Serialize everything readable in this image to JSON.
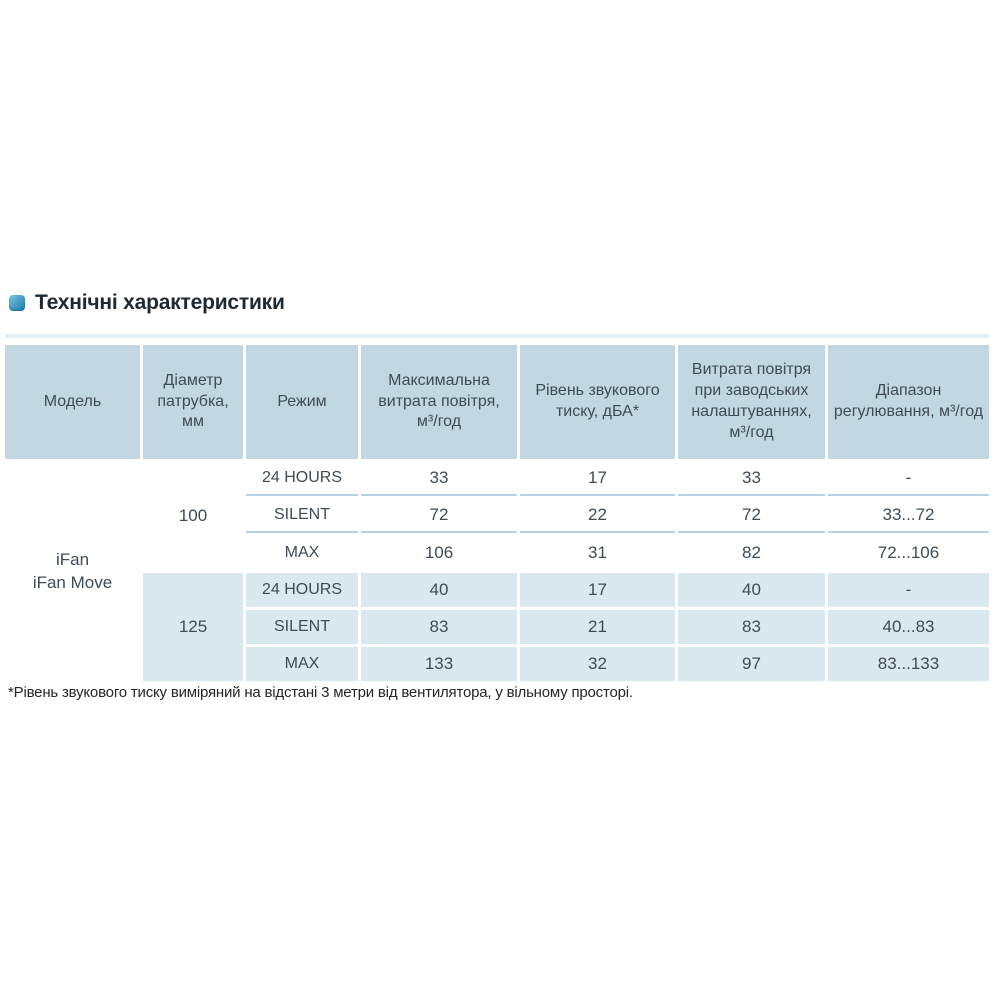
{
  "heading": {
    "text": "Технічні характеристики"
  },
  "colors": {
    "header_bg": "#c2d7e2",
    "row_alt_bg": "#dae8ef",
    "separator_line": "#b5d3e5",
    "top_line": "#e3eef4",
    "heading_text": "#1e2a33",
    "body_text": "#3f4b55",
    "bullet_gradient_start": "#85c6e1",
    "bullet_gradient_end": "#2280b0"
  },
  "table": {
    "headers": {
      "model": "Модель",
      "diameter": "Діаметр патрубка, мм",
      "mode": "Режим",
      "max_airflow": "Максимальна витрата повітря, м³/год",
      "noise": "Рівень звукового тиску, дБА*",
      "factory_airflow": "Витрата повітря при заводських налаштуваннях, м³/год",
      "range": "Діапазон регулювання, м³/год"
    },
    "model": {
      "line1": "iFan",
      "line2": "iFan Move"
    },
    "groups": [
      {
        "diameter": "100",
        "rows": [
          {
            "mode": "24 HOURS",
            "max_airflow": "33",
            "noise": "17",
            "factory_airflow": "33",
            "range": "-"
          },
          {
            "mode": "SILENT",
            "max_airflow": "72",
            "noise": "22",
            "factory_airflow": "72",
            "range": "33...72"
          },
          {
            "mode": "MAX",
            "max_airflow": "106",
            "noise": "31",
            "factory_airflow": "82",
            "range": "72...106"
          }
        ]
      },
      {
        "diameter": "125",
        "rows": [
          {
            "mode": "24 HOURS",
            "max_airflow": "40",
            "noise": "17",
            "factory_airflow": "40",
            "range": "-"
          },
          {
            "mode": "SILENT",
            "max_airflow": "83",
            "noise": "21",
            "factory_airflow": "83",
            "range": "40...83"
          },
          {
            "mode": "MAX",
            "max_airflow": "133",
            "noise": "32",
            "factory_airflow": "97",
            "range": "83...133"
          }
        ]
      }
    ]
  },
  "footnote": "*Рівень звукового тиску виміряний на відстані 3 метри від вентилятора, у вільному просторі."
}
